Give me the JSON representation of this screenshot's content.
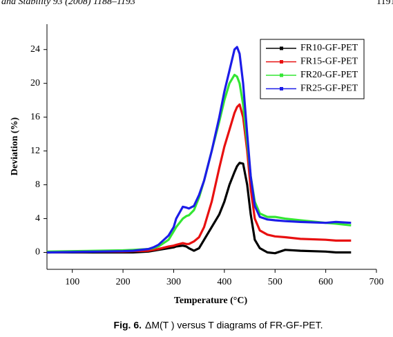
{
  "header": {
    "left": "and Stability 93 (2008) 1188–1193",
    "right": "1191"
  },
  "chart_data": {
    "type": "line",
    "xlabel": "Temperature (°C)",
    "ylabel": "Deviation (%)",
    "x": [
      50,
      100,
      150,
      200,
      220,
      250,
      260,
      270,
      290,
      300,
      305,
      318,
      325,
      330,
      340,
      350,
      360,
      375,
      390,
      400,
      410,
      420,
      425,
      430,
      437,
      445,
      452,
      460,
      470,
      485,
      500,
      520,
      550,
      600,
      620,
      650
    ],
    "series": [
      {
        "name": "FR10-GF-PET",
        "color": "#000000",
        "values": [
          0,
          0,
          0,
          0,
          0,
          0.1,
          0.2,
          0.3,
          0.5,
          0.6,
          0.7,
          0.8,
          0.7,
          0.5,
          0.2,
          0.5,
          1.5,
          3,
          4.5,
          6,
          8,
          9.5,
          10.2,
          10.6,
          10.5,
          8,
          4.5,
          1.5,
          0.5,
          0,
          -0.1,
          0.3,
          0.2,
          0.1,
          0,
          0
        ]
      },
      {
        "name": "FR15-GF-PET",
        "color": "#e81010",
        "values": [
          0,
          0.05,
          0.1,
          0.1,
          0.15,
          0.2,
          0.3,
          0.4,
          0.7,
          0.8,
          0.9,
          1.1,
          1,
          1,
          1.3,
          1.8,
          3,
          6,
          10,
          12.5,
          14.5,
          16.5,
          17.2,
          17.5,
          16,
          12,
          7.5,
          4,
          2.6,
          2.1,
          1.9,
          1.8,
          1.6,
          1.5,
          1.4,
          1.4
        ]
      },
      {
        "name": "FR20-GF-PET",
        "color": "#33e633",
        "values": [
          0.1,
          0.15,
          0.2,
          0.25,
          0.3,
          0.4,
          0.5,
          0.7,
          1.5,
          2.5,
          3,
          4,
          4.3,
          4.4,
          5,
          6.5,
          8.5,
          12,
          15.5,
          18,
          20,
          21,
          20.8,
          20,
          17.5,
          13,
          9,
          6,
          4.6,
          4.2,
          4.2,
          4,
          3.8,
          3.5,
          3.4,
          3.2
        ]
      },
      {
        "name": "FR25-GF-PET",
        "color": "#1c1ce8",
        "values": [
          0,
          0.05,
          0.1,
          0.15,
          0.2,
          0.4,
          0.6,
          0.9,
          2,
          3,
          4,
          5.4,
          5.3,
          5.2,
          5.5,
          6.8,
          8.5,
          12,
          16,
          19,
          21.5,
          24,
          24.3,
          23.5,
          20,
          14,
          9,
          5.5,
          4.2,
          3.9,
          3.8,
          3.7,
          3.6,
          3.5,
          3.6,
          3.5
        ]
      }
    ],
    "xlim": [
      50,
      700
    ],
    "xticks": [
      100,
      200,
      300,
      400,
      500,
      600,
      700
    ],
    "ylim": [
      -2,
      27
    ],
    "yticks": [
      0,
      4,
      8,
      12,
      16,
      20,
      24
    ],
    "legend": "top-right"
  },
  "caption": {
    "label": "Fig. 6.",
    "text": "ΔM(T ) versus T diagrams of FR-GF-PET."
  }
}
